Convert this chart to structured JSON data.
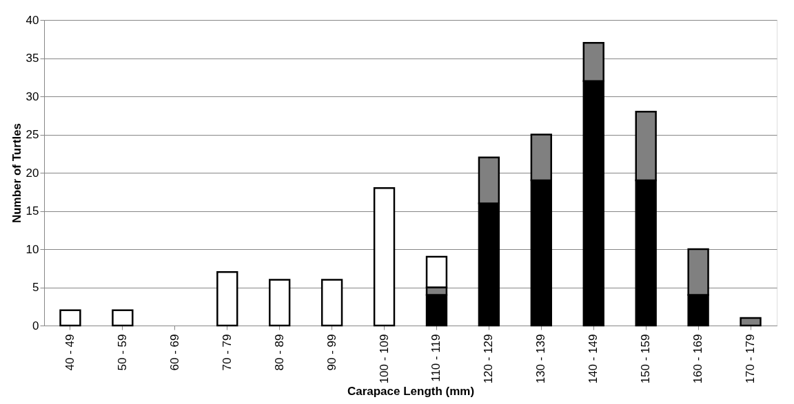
{
  "chart_data": {
    "type": "bar",
    "stacked": true,
    "xlabel": "Carapace Length (mm)",
    "ylabel": "Number of Turtles",
    "categories": [
      "40 - 49",
      "50 - 59",
      "60 - 69",
      "70 - 79",
      "80 - 89",
      "90 - 99",
      "100 - 109",
      "110 - 119",
      "120 - 129",
      "130 - 139",
      "140 - 149",
      "150 - 159",
      "160 - 169",
      "170 - 179"
    ],
    "series": [
      {
        "color": "#000000",
        "values": [
          0,
          0,
          0,
          0,
          0,
          0,
          0,
          4,
          16,
          19,
          32,
          19,
          4,
          0
        ]
      },
      {
        "color": "#808080",
        "values": [
          0,
          0,
          0,
          0,
          0,
          0,
          0,
          1,
          6,
          6,
          5,
          9,
          6,
          1
        ]
      },
      {
        "color": "#ffffff",
        "values": [
          2,
          2,
          0,
          7,
          6,
          6,
          18,
          4,
          0,
          0,
          0,
          0,
          0,
          0
        ]
      }
    ],
    "ylim": [
      0,
      40
    ],
    "yticks": [
      0,
      5,
      10,
      15,
      20,
      25,
      30,
      35,
      40
    ],
    "grid": "y",
    "legend": false
  }
}
